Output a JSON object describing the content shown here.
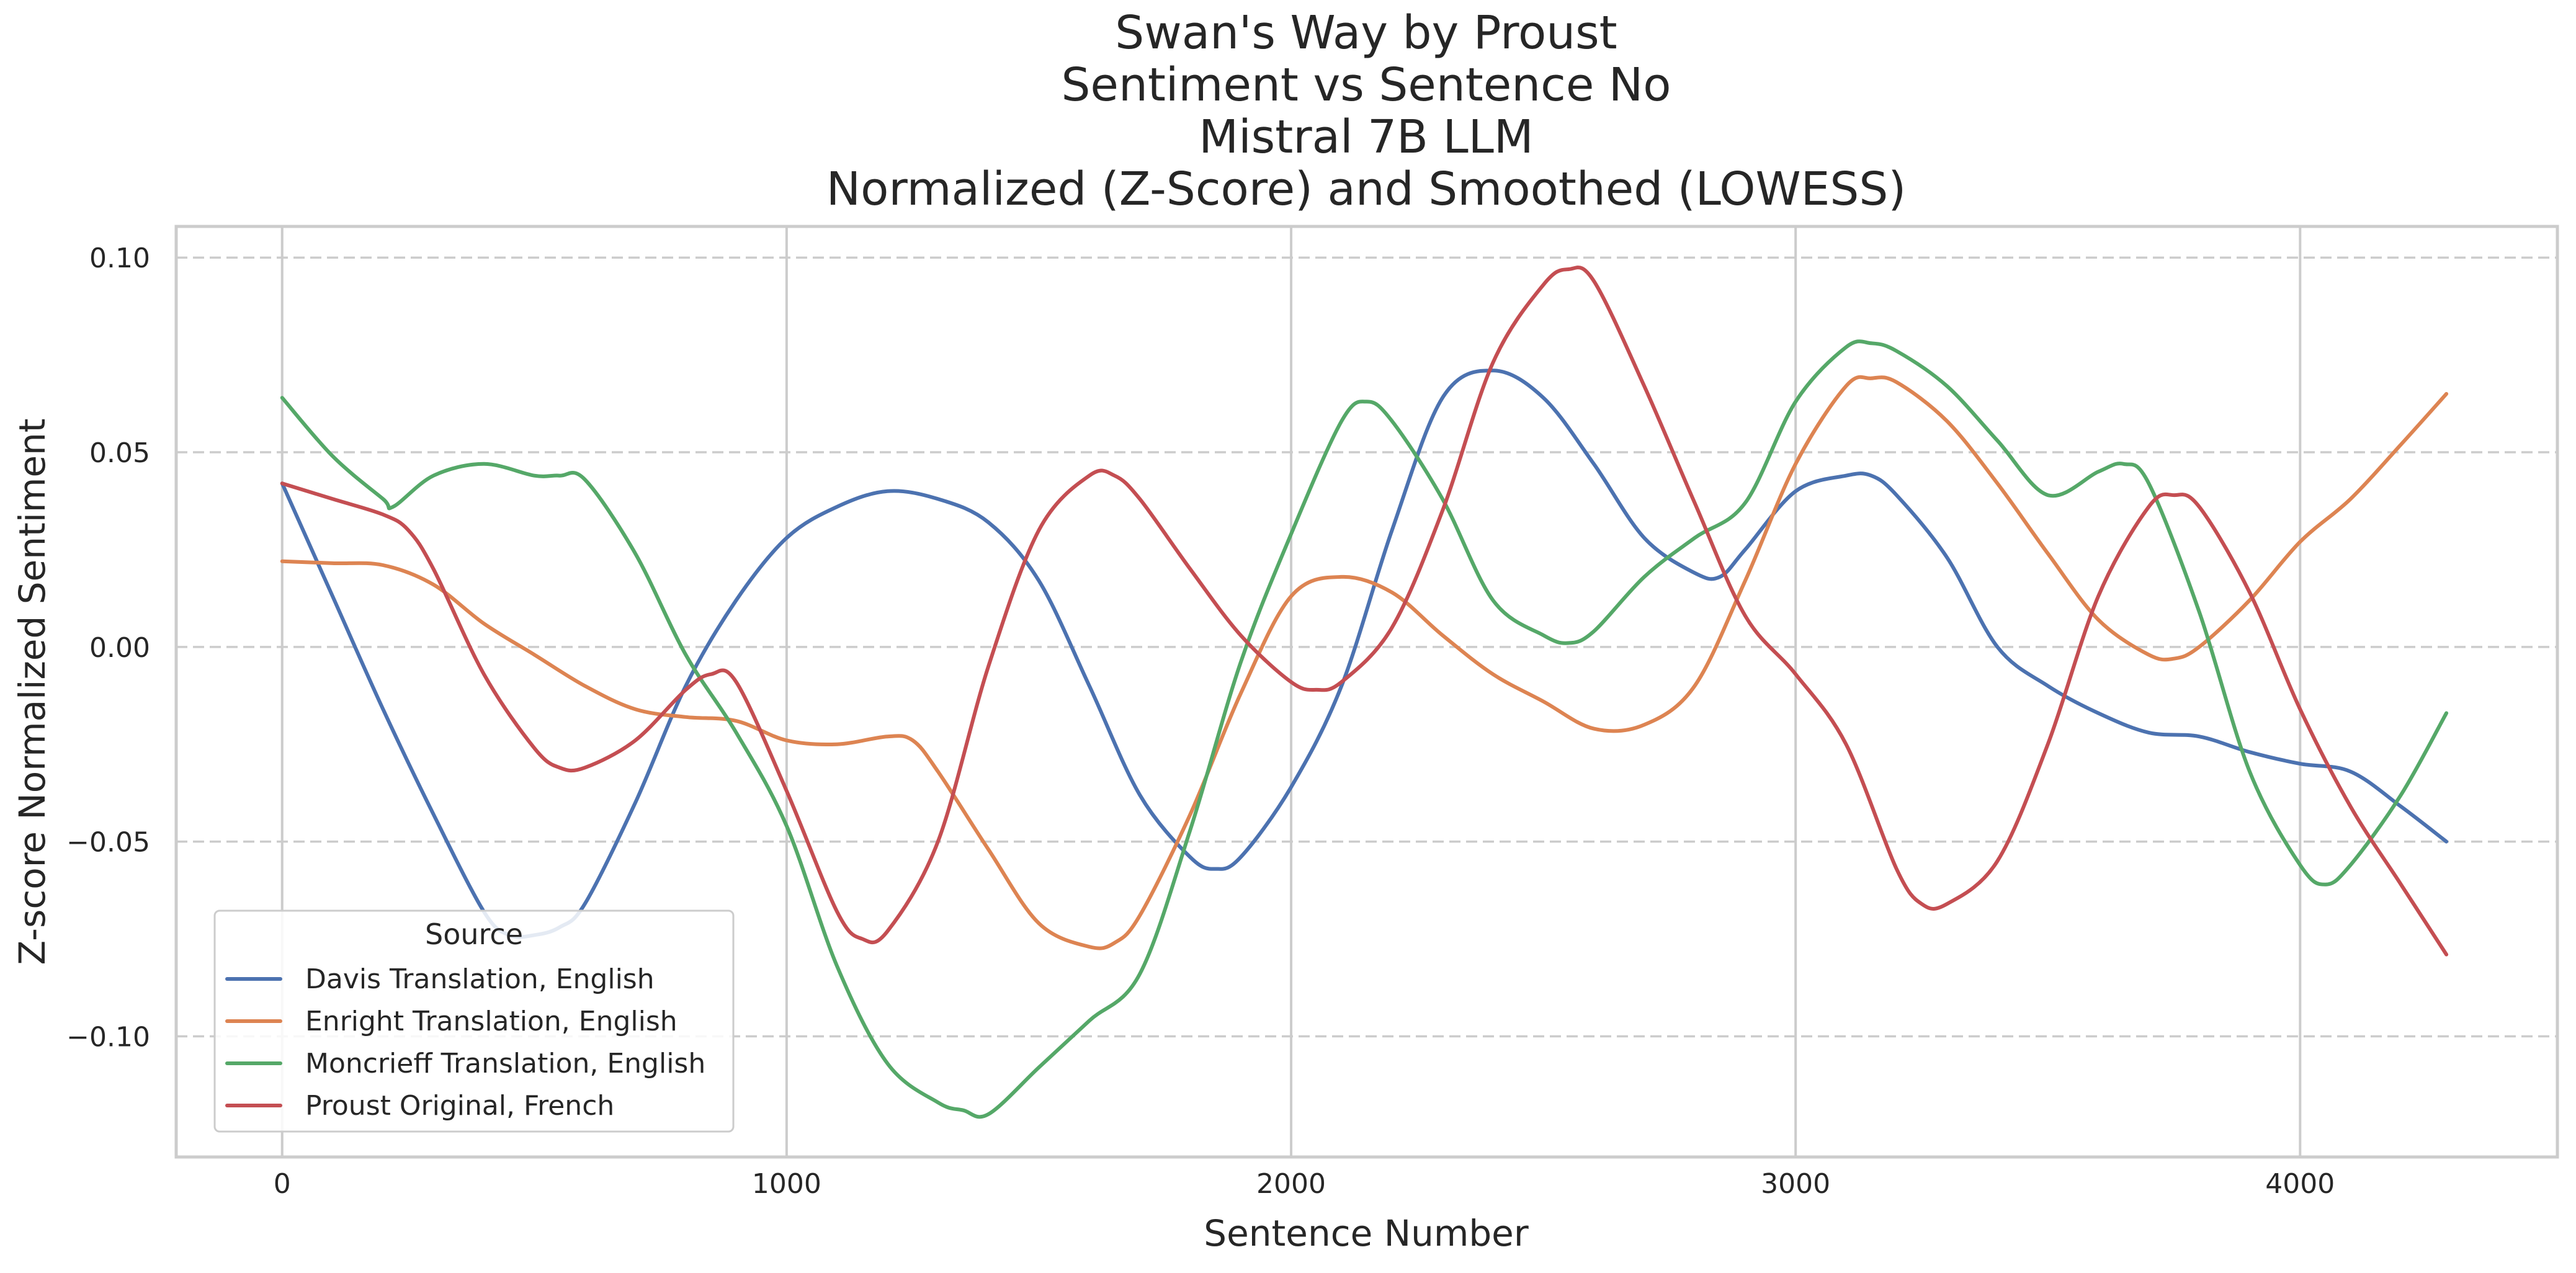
{
  "chart_data": {
    "type": "line",
    "title_lines": [
      "Swan's Way by Proust",
      "Sentiment vs Sentence No",
      "Mistral 7B LLM",
      "Normalized (Z-Score) and Smoothed (LOWESS)"
    ],
    "xlabel": "Sentence Number",
    "ylabel": "Z-score Normalized Sentiment",
    "xlim": [
      -210,
      4510
    ],
    "ylim": [
      -0.131,
      0.108
    ],
    "xticks": [
      0,
      1000,
      2000,
      3000,
      4000
    ],
    "xtick_labels": [
      "0",
      "1000",
      "2000",
      "3000",
      "4000"
    ],
    "yticks": [
      0.1,
      0.05,
      0.0,
      -0.05,
      -0.1
    ],
    "ytick_labels": [
      "0.10",
      "0.05",
      "0.00",
      "−0.05",
      "−0.10"
    ],
    "grid": {
      "x": "solid",
      "y": "dashed"
    },
    "legend": {
      "title": "Source",
      "position": "lower-left"
    },
    "series": [
      {
        "name": "Davis Translation, English",
        "color": "#4c72b0",
        "x": [
          0,
          100,
          200,
          300,
          400,
          450,
          500,
          550,
          600,
          700,
          800,
          900,
          1000,
          1100,
          1200,
          1300,
          1400,
          1500,
          1600,
          1700,
          1800,
          1850,
          1900,
          2000,
          2100,
          2200,
          2300,
          2400,
          2500,
          2600,
          2700,
          2800,
          2850,
          2900,
          3000,
          3100,
          3150,
          3200,
          3300,
          3400,
          3500,
          3600,
          3700,
          3800,
          3900,
          4000,
          4100,
          4200,
          4290
        ],
        "y": [
          0.042,
          0.013,
          -0.016,
          -0.043,
          -0.068,
          -0.074,
          -0.074,
          -0.072,
          -0.066,
          -0.04,
          -0.01,
          0.012,
          0.028,
          0.036,
          0.04,
          0.038,
          0.032,
          0.017,
          -0.01,
          -0.038,
          -0.054,
          -0.057,
          -0.054,
          -0.036,
          -0.01,
          0.03,
          0.064,
          0.071,
          0.064,
          0.047,
          0.028,
          0.019,
          0.018,
          0.025,
          0.04,
          0.044,
          0.044,
          0.039,
          0.023,
          0.0,
          -0.01,
          -0.017,
          -0.022,
          -0.023,
          -0.027,
          -0.03,
          -0.032,
          -0.041,
          -0.05
        ]
      },
      {
        "name": "Enright Translation, English",
        "color": "#dd8452",
        "x": [
          0,
          100,
          200,
          300,
          400,
          500,
          600,
          700,
          800,
          900,
          1000,
          1100,
          1200,
          1250,
          1300,
          1400,
          1500,
          1600,
          1650,
          1700,
          1800,
          1900,
          2000,
          2100,
          2200,
          2300,
          2400,
          2500,
          2600,
          2700,
          2800,
          2900,
          3000,
          3100,
          3150,
          3200,
          3300,
          3400,
          3500,
          3600,
          3700,
          3750,
          3800,
          3900,
          4000,
          4100,
          4200,
          4290
        ],
        "y": [
          0.022,
          0.0215,
          0.021,
          0.016,
          0.006,
          -0.002,
          -0.01,
          -0.016,
          -0.018,
          -0.019,
          -0.024,
          -0.025,
          -0.023,
          -0.024,
          -0.032,
          -0.052,
          -0.071,
          -0.077,
          -0.076,
          -0.069,
          -0.043,
          -0.012,
          0.013,
          0.018,
          0.014,
          0.003,
          -0.007,
          -0.014,
          -0.021,
          -0.02,
          -0.01,
          0.017,
          0.047,
          0.067,
          0.069,
          0.068,
          0.058,
          0.042,
          0.024,
          0.007,
          -0.002,
          -0.003,
          0.0,
          0.012,
          0.027,
          0.038,
          0.052,
          0.065
        ]
      },
      {
        "name": "Moncrieff Translation, English",
        "color": "#55a868",
        "x": [
          0,
          100,
          200,
          220,
          300,
          400,
          500,
          550,
          600,
          700,
          800,
          900,
          1000,
          1100,
          1200,
          1300,
          1350,
          1400,
          1500,
          1600,
          1700,
          1800,
          1900,
          2000,
          2100,
          2150,
          2200,
          2300,
          2400,
          2500,
          2550,
          2600,
          2700,
          2800,
          2900,
          3000,
          3100,
          3150,
          3200,
          3300,
          3400,
          3500,
          3600,
          3650,
          3700,
          3800,
          3900,
          4000,
          4050,
          4100,
          4200,
          4290
        ],
        "y": [
          0.064,
          0.049,
          0.038,
          0.036,
          0.044,
          0.047,
          0.044,
          0.044,
          0.043,
          0.024,
          -0.002,
          -0.022,
          -0.046,
          -0.082,
          -0.107,
          -0.117,
          -0.119,
          -0.12,
          -0.108,
          -0.096,
          -0.084,
          -0.047,
          -0.004,
          0.029,
          0.058,
          0.063,
          0.058,
          0.038,
          0.012,
          0.003,
          0.001,
          0.004,
          0.018,
          0.028,
          0.037,
          0.063,
          0.077,
          0.078,
          0.076,
          0.067,
          0.053,
          0.039,
          0.045,
          0.047,
          0.042,
          0.009,
          -0.032,
          -0.056,
          -0.061,
          -0.056,
          -0.038,
          -0.017
        ]
      },
      {
        "name": "Proust Original, French",
        "color": "#c44e52",
        "x": [
          0,
          100,
          200,
          250,
          300,
          400,
          500,
          550,
          600,
          700,
          800,
          850,
          900,
          1000,
          1100,
          1150,
          1200,
          1300,
          1400,
          1500,
          1600,
          1650,
          1700,
          1800,
          1900,
          2000,
          2050,
          2100,
          2200,
          2300,
          2400,
          2500,
          2550,
          2600,
          2700,
          2800,
          2900,
          3000,
          3100,
          3200,
          3250,
          3300,
          3400,
          3500,
          3600,
          3700,
          3750,
          3800,
          3900,
          4000,
          4100,
          4200,
          4290
        ],
        "y": [
          0.042,
          0.038,
          0.034,
          0.03,
          0.02,
          -0.007,
          -0.026,
          -0.031,
          -0.031,
          -0.024,
          -0.011,
          -0.007,
          -0.009,
          -0.037,
          -0.068,
          -0.075,
          -0.073,
          -0.05,
          -0.005,
          0.03,
          0.044,
          0.044,
          0.038,
          0.02,
          0.003,
          -0.009,
          -0.011,
          -0.009,
          0.005,
          0.035,
          0.073,
          0.093,
          0.097,
          0.094,
          0.067,
          0.037,
          0.008,
          -0.007,
          -0.025,
          -0.057,
          -0.066,
          -0.066,
          -0.055,
          -0.025,
          0.013,
          0.036,
          0.039,
          0.036,
          0.014,
          -0.016,
          -0.041,
          -0.061,
          -0.079
        ]
      }
    ]
  }
}
